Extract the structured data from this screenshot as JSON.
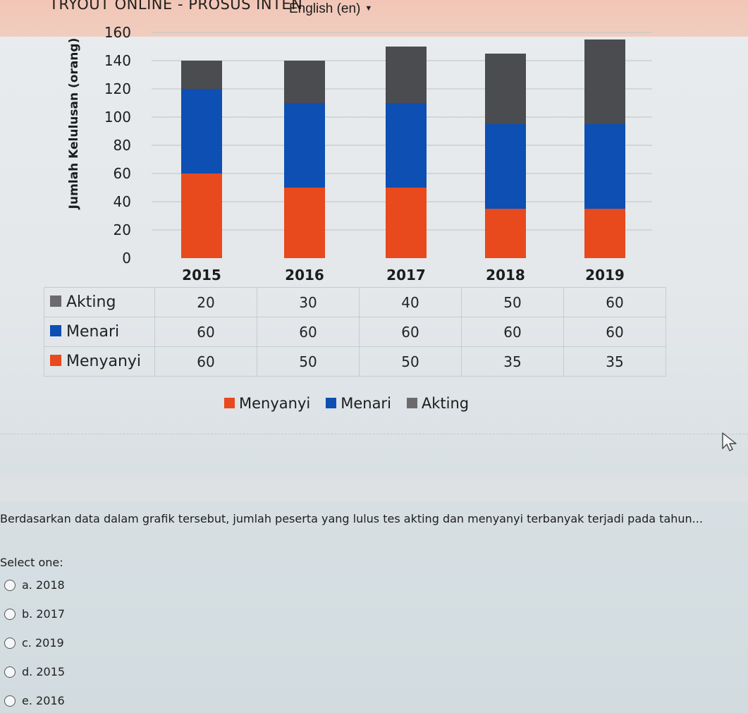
{
  "header": {
    "site_title": "TRYOUT ONLINE - PROSUS INTEN",
    "language_selector": "English (en)"
  },
  "chart_data": {
    "type": "bar",
    "stacked": true,
    "categories": [
      "2015",
      "2016",
      "2017",
      "2018",
      "2019"
    ],
    "series": [
      {
        "name": "Menyanyi",
        "values": [
          60,
          50,
          50,
          35,
          35
        ],
        "color": "#e8491d"
      },
      {
        "name": "Menari",
        "values": [
          60,
          60,
          60,
          60,
          60
        ],
        "color": "#0d4fb3"
      },
      {
        "name": "Akting",
        "values": [
          20,
          30,
          40,
          50,
          60
        ],
        "color": "#4b4c50"
      }
    ],
    "ylabel": "Jumlah Kelulusan (orang)",
    "ylim": [
      0,
      160
    ],
    "yticks": [
      0,
      20,
      40,
      60,
      80,
      100,
      120,
      140,
      160
    ],
    "grid": true,
    "legend_position": "bottom"
  },
  "data_table": {
    "rows": [
      {
        "label": "Akting",
        "color": "#6b6b6e",
        "values": [
          "20",
          "30",
          "40",
          "50",
          "60"
        ]
      },
      {
        "label": "Menari",
        "color": "#0d4fb3",
        "values": [
          "60",
          "60",
          "60",
          "60",
          "60"
        ]
      },
      {
        "label": "Menyanyi",
        "color": "#e8491d",
        "values": [
          "60",
          "50",
          "50",
          "35",
          "35"
        ]
      }
    ]
  },
  "legend": [
    {
      "label": "Menyanyi",
      "color": "#e8491d"
    },
    {
      "label": "Menari",
      "color": "#0d4fb3"
    },
    {
      "label": "Akting",
      "color": "#6b6b6e"
    }
  ],
  "question": {
    "text": "Berdasarkan data dalam grafik tersebut, jumlah peserta yang lulus tes akting dan menyanyi terbanyak terjadi pada tahun...",
    "select_label": "Select one:",
    "options": [
      {
        "label": "a. 2018"
      },
      {
        "label": "b. 2017"
      },
      {
        "label": "c. 2019"
      },
      {
        "label": "d. 2015"
      },
      {
        "label": "e. 2016"
      }
    ]
  }
}
